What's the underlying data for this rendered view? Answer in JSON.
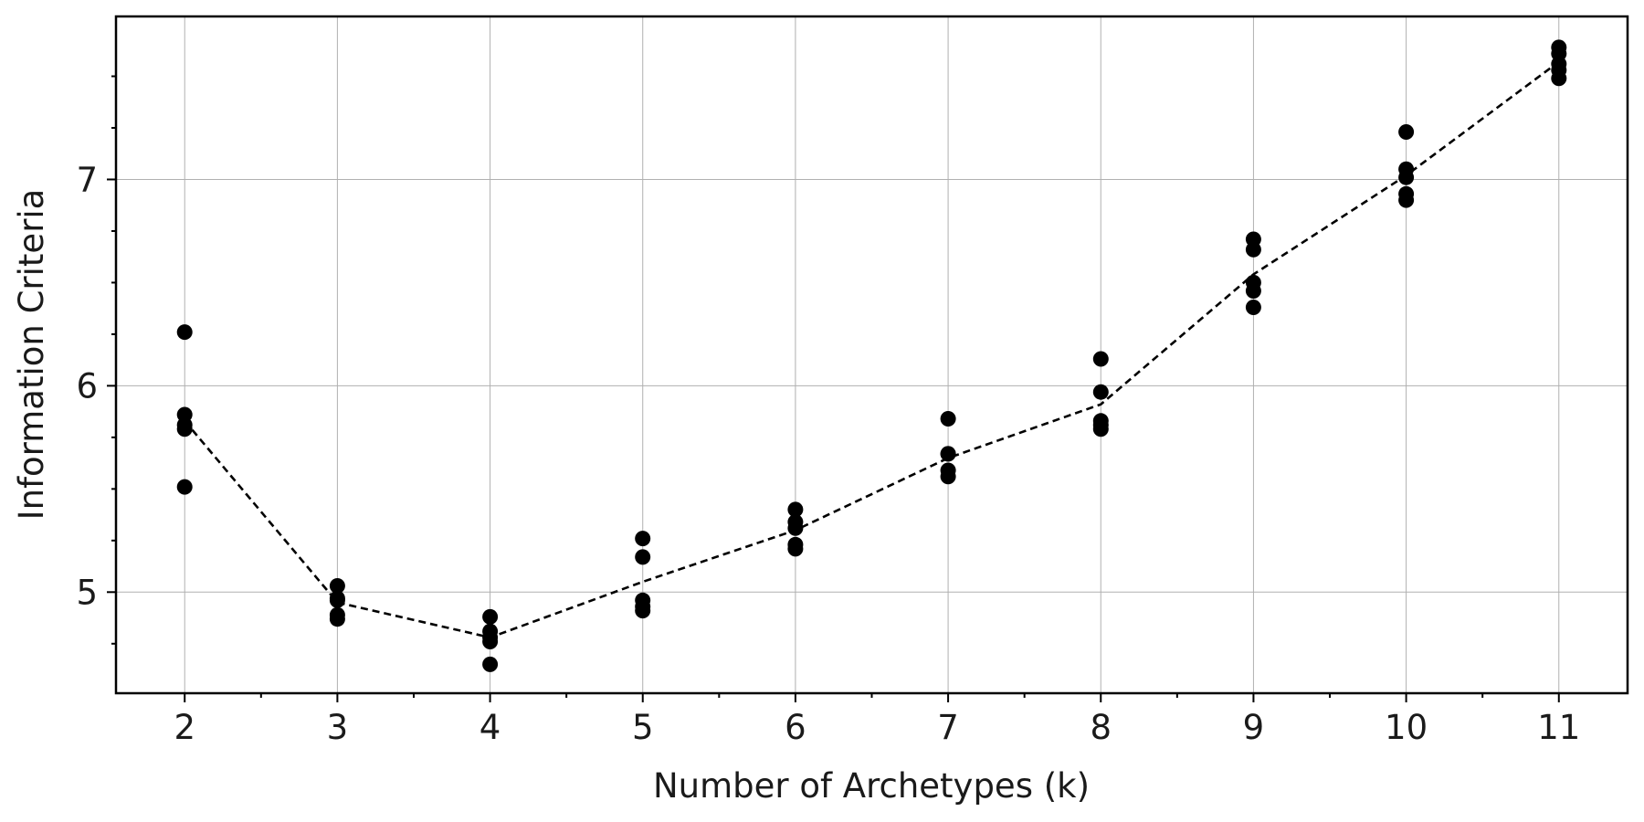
{
  "chart_data": {
    "type": "scatter",
    "title": "",
    "xlabel": "Number of Archetypes (k)",
    "ylabel": "Information Criteria",
    "xlim": [
      1.55,
      11.45
    ],
    "ylim": [
      4.51,
      7.79
    ],
    "x_ticks": [
      2,
      3,
      4,
      5,
      6,
      7,
      8,
      9,
      10,
      11
    ],
    "x_tick_labels": [
      "2",
      "3",
      "4",
      "5",
      "6",
      "7",
      "8",
      "9",
      "10",
      "11"
    ],
    "x_minor_ticks": [
      2.5,
      3.5,
      4.5,
      5.5,
      6.5,
      7.5,
      8.5,
      9.5,
      10.5
    ],
    "y_ticks": [
      5,
      6,
      7
    ],
    "y_tick_labels": [
      "5",
      "6",
      "7"
    ],
    "y_minor_ticks": [
      4.75,
      5.25,
      5.5,
      5.75,
      6.25,
      6.5,
      6.75,
      7.25,
      7.5
    ],
    "grid": true,
    "legend": "none",
    "point_color": "#000000",
    "line_color": "#000000",
    "series": [
      {
        "kind": "scatter",
        "x": [
          2,
          2,
          2,
          2,
          2,
          3,
          3,
          3,
          3,
          3,
          4,
          4,
          4,
          4,
          4,
          5,
          5,
          5,
          5,
          5,
          6,
          6,
          6,
          6,
          6,
          7,
          7,
          7,
          7,
          7,
          8,
          8,
          8,
          8,
          8,
          9,
          9,
          9,
          9,
          9,
          10,
          10,
          10,
          10,
          10,
          11,
          11,
          11,
          11,
          11
        ],
        "y": [
          6.26,
          5.86,
          5.81,
          5.79,
          5.51,
          5.03,
          4.97,
          4.96,
          4.89,
          4.87,
          4.88,
          4.81,
          4.78,
          4.76,
          4.65,
          5.26,
          5.17,
          4.96,
          4.93,
          4.91,
          5.4,
          5.34,
          5.31,
          5.23,
          5.21,
          5.84,
          5.67,
          5.67,
          5.59,
          5.56,
          6.13,
          5.97,
          5.83,
          5.81,
          5.79,
          6.71,
          6.66,
          6.5,
          6.46,
          6.38,
          7.23,
          7.05,
          7.01,
          6.93,
          6.9,
          7.64,
          7.61,
          7.56,
          7.53,
          7.49
        ]
      },
      {
        "kind": "line",
        "style": "dashed",
        "x": [
          2,
          3,
          4,
          5,
          6,
          7,
          8,
          9,
          10,
          11
        ],
        "y": [
          5.83,
          4.95,
          4.78,
          5.05,
          5.3,
          5.65,
          5.91,
          6.54,
          7.02,
          7.57
        ]
      }
    ]
  }
}
